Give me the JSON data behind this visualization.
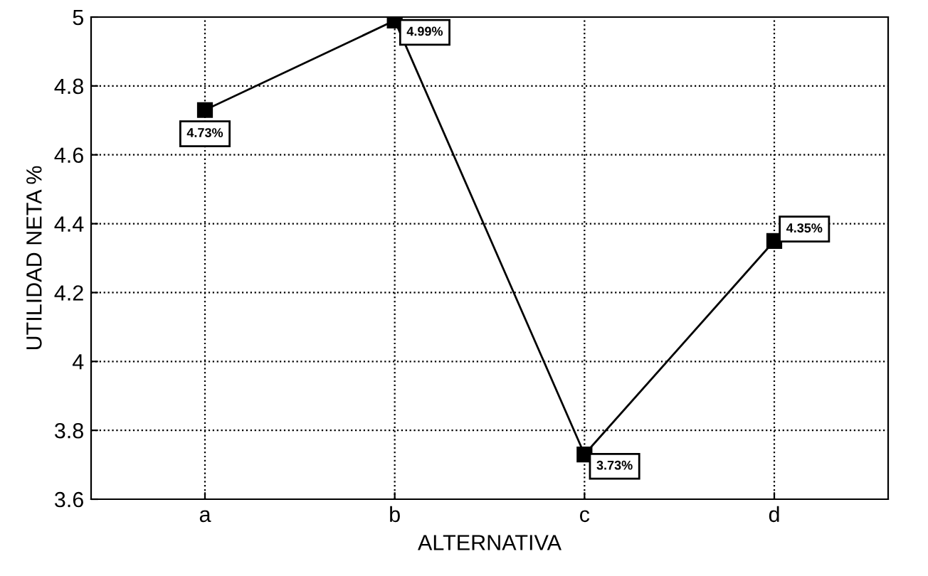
{
  "chart_data": {
    "type": "line",
    "xlabel": "ALTERNATIVA",
    "ylabel": "UTILIDAD NETA %",
    "categories": [
      "a",
      "b",
      "c",
      "d"
    ],
    "series": [
      {
        "color": "#000000",
        "values": [
          4.73,
          4.99,
          3.73,
          4.35
        ],
        "value_labels": [
          "4.73%",
          "4.99%",
          "3.73%",
          "4.35%"
        ]
      }
    ],
    "ylim": [
      3.6,
      5
    ],
    "yticks": [
      3.6,
      3.8,
      4,
      4.2,
      4.4,
      4.6,
      4.8,
      5
    ],
    "grid": true,
    "marker": "square",
    "line_style": "solid",
    "legend": false
  }
}
